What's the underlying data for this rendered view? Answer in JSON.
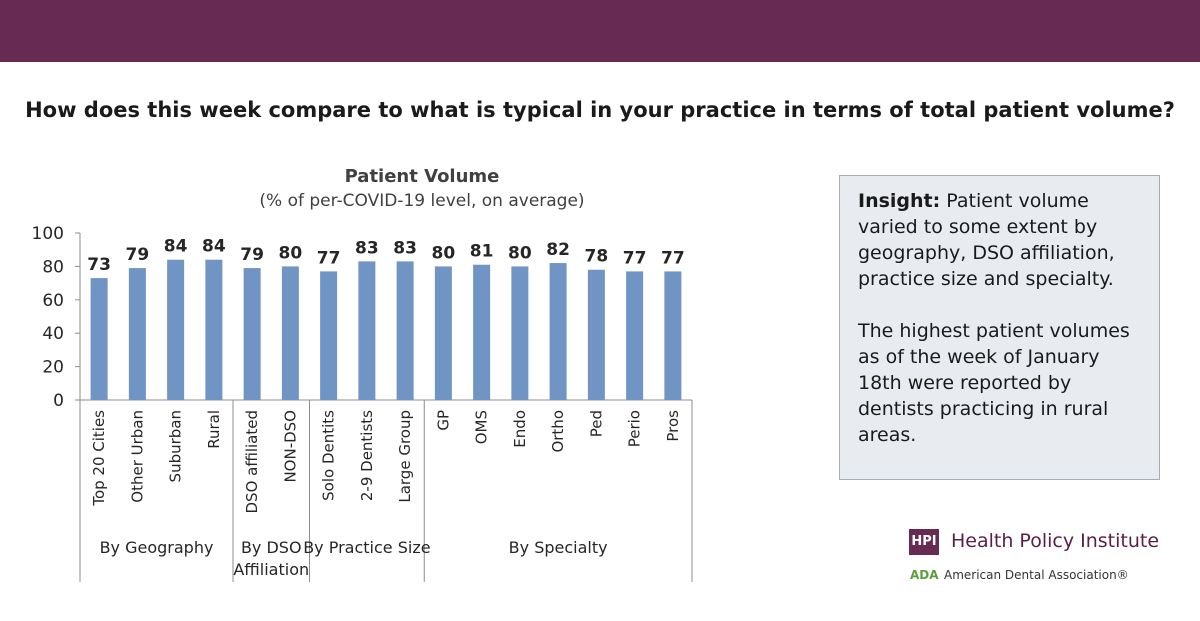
{
  "header": {
    "question": "How does this week compare to what is typical in your practice in terms of total patient volume?",
    "band_color": "#662a53"
  },
  "chart_data": {
    "type": "bar",
    "title": "Patient Volume",
    "subtitle": "(% of per-COVID-19 level, on average)",
    "ylim": [
      0,
      100
    ],
    "yticks": [
      0,
      20,
      40,
      60,
      80,
      100
    ],
    "grid": false,
    "bar_color": "#7094c4",
    "categories": [
      "Top 20 Cities",
      "Other Urban",
      "Suburban",
      "Rural",
      "DSO affiliated",
      "NON-DSO",
      "Solo Dentits",
      "2-9 Dentists",
      "Large Group",
      "GP",
      "OMS",
      "Endo",
      "Ortho",
      "Ped",
      "Perio",
      "Pros"
    ],
    "values": [
      73,
      79,
      84,
      84,
      79,
      80,
      77,
      83,
      83,
      80,
      81,
      80,
      82,
      78,
      77,
      77
    ],
    "groups": [
      {
        "label": [
          "By Geography"
        ],
        "count": 4
      },
      {
        "label": [
          "By DSO",
          "Affiliation"
        ],
        "count": 2
      },
      {
        "label": [
          "By Practice Size"
        ],
        "count": 3
      },
      {
        "label": [
          "By Specialty"
        ],
        "count": 7
      }
    ]
  },
  "insight": {
    "heading": "Insight:",
    "text1": " Patient volume varied to some extent by geography, DSO affiliation, practice size and specialty.",
    "text2": "The highest patient volumes as of the week of January 18th were reported by dentists practicing in rural areas."
  },
  "branding": {
    "hpi_badge": "HPI",
    "hpi_name": "Health Policy Institute",
    "ada_abbr": "ADA",
    "ada_name": "American Dental Association®"
  }
}
